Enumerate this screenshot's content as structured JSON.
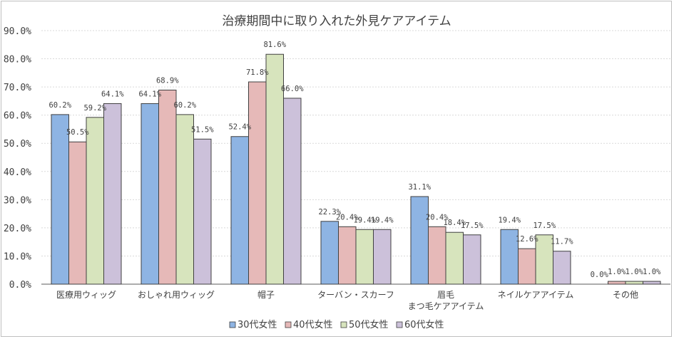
{
  "chart_data": {
    "type": "bar",
    "title": "治療期間中に取り入れた外見ケアアイテム",
    "categories": [
      [
        "医療用ウィッグ"
      ],
      [
        "おしゃれ用ウィッグ"
      ],
      [
        "帽子"
      ],
      [
        "ターバン・スカーフ"
      ],
      [
        "眉毛",
        "まつ毛ケアアイテム"
      ],
      [
        "ネイルケアアイテム"
      ],
      [
        "その他"
      ]
    ],
    "series": [
      {
        "name": "30代女性",
        "color": "#8eb4e3",
        "values": [
          60.2,
          64.1,
          52.4,
          22.3,
          31.1,
          19.4,
          0.0
        ],
        "labels": [
          "60.2%",
          "64.1%",
          "52.4%",
          "22.3%",
          "31.1%",
          "19.4%",
          "0.0%"
        ]
      },
      {
        "name": "40代女性",
        "color": "#e6b9b8",
        "values": [
          50.5,
          68.9,
          71.8,
          20.4,
          20.4,
          12.6,
          1.0
        ],
        "labels": [
          "50.5%",
          "68.9%",
          "71.8%",
          "20.4%",
          "20.4%",
          "12.6%",
          "1.0%"
        ]
      },
      {
        "name": "50代女性",
        "color": "#d7e4bd",
        "values": [
          59.2,
          60.2,
          81.6,
          19.4,
          18.4,
          17.5,
          1.0
        ],
        "labels": [
          "59.2%",
          "60.2%",
          "81.6%",
          "19.4%",
          "18.4%",
          "17.5%",
          "1.0%"
        ]
      },
      {
        "name": "60代女性",
        "color": "#ccc1da",
        "values": [
          64.1,
          51.5,
          66.0,
          19.4,
          17.5,
          11.7,
          1.0
        ],
        "labels": [
          "64.1%",
          "51.5%",
          "66.0%",
          "19.4%",
          "17.5%",
          "11.7%",
          "1.0%"
        ]
      }
    ],
    "ylim": [
      0,
      90
    ],
    "yticks": [
      "0.0%",
      "10.0%",
      "20.0%",
      "30.0%",
      "40.0%",
      "50.0%",
      "60.0%",
      "70.0%",
      "80.0%",
      "90.0%"
    ],
    "grid": true,
    "legend_position": "bottom"
  }
}
